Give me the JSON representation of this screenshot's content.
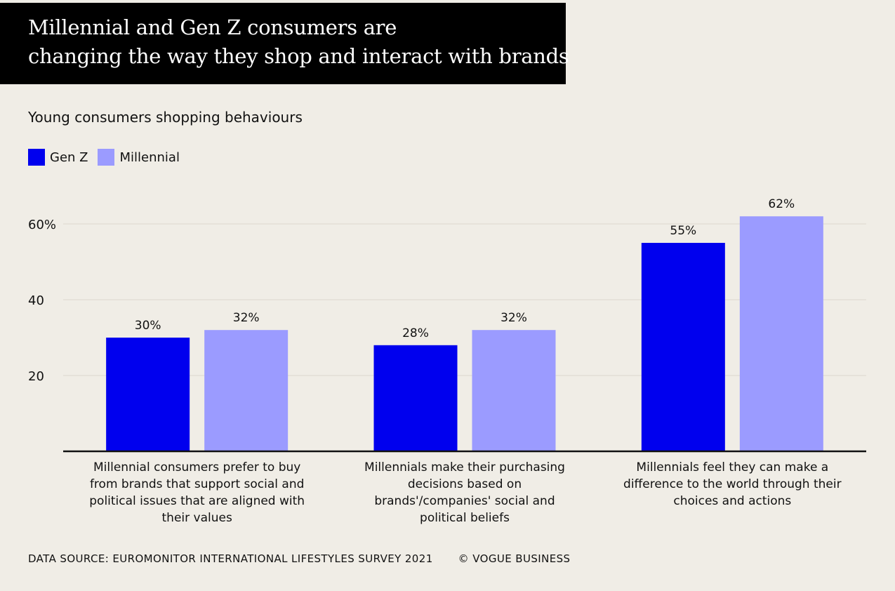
{
  "header": {
    "title_line1": "Millennial and Gen Z consumers are",
    "title_line2": "changing the way they shop and interact with brands"
  },
  "footer": {
    "source": "DATA SOURCE: EUROMONITOR INTERNATIONAL LIFESTYLES SURVEY 2021",
    "credit": "© VOGUE BUSINESS"
  },
  "chart_data": {
    "type": "bar",
    "title": "Young consumers shopping behaviours",
    "xlabel": "",
    "ylabel": "",
    "ylim": [
      0,
      65
    ],
    "yticks": [
      {
        "value": 20,
        "label": "20"
      },
      {
        "value": 40,
        "label": "40"
      },
      {
        "value": 60,
        "label": "60%"
      }
    ],
    "grid": true,
    "legend_position": "top-left",
    "categories": [
      [
        "Millennial consumers prefer to buy",
        "from brands that support social and",
        "political issues that are aligned with",
        "their values"
      ],
      [
        "Millennials make their purchasing",
        "decisions based on",
        "brands'/companies' social and",
        "political beliefs"
      ],
      [
        "Millennials feel they can make a",
        "difference to the world through their",
        "choices and actions"
      ]
    ],
    "series": [
      {
        "name": "Gen Z",
        "color": "#0000ee",
        "values": [
          30,
          28,
          55
        ],
        "labels": [
          "30%",
          "28%",
          "55%"
        ]
      },
      {
        "name": "Millennial",
        "color": "#9b9bff",
        "values": [
          32,
          32,
          62
        ],
        "labels": [
          "32%",
          "32%",
          "62%"
        ]
      }
    ]
  }
}
